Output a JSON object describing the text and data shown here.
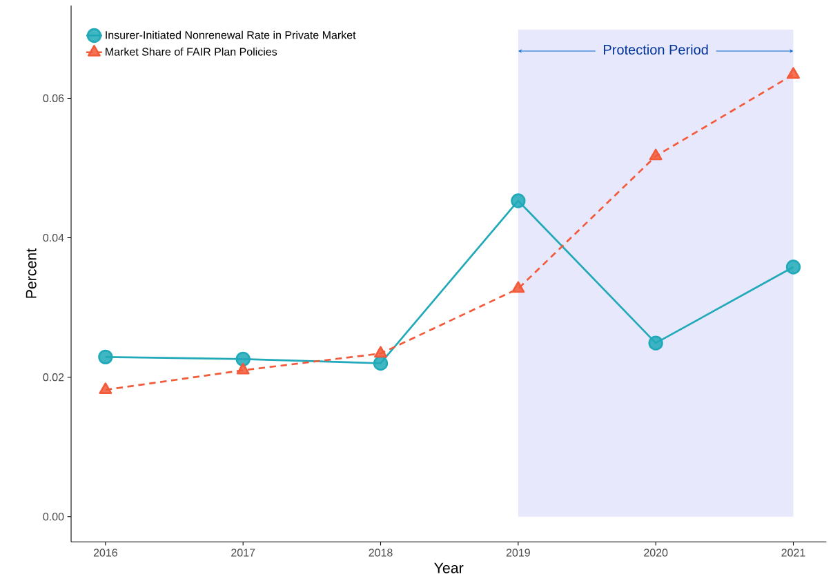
{
  "chart_data": {
    "type": "line",
    "xlabel": "Year",
    "ylabel": "Percent",
    "x": [
      2016,
      2017,
      2018,
      2019,
      2020,
      2021
    ],
    "series": [
      {
        "name": "Insurer-Initiated Nonrenewal Rate in Private Market",
        "color": "#20a9b8",
        "marker": "circle",
        "line_style": "solid",
        "values": [
          0.0229,
          0.0226,
          0.022,
          0.0453,
          0.0249,
          0.0358
        ]
      },
      {
        "name": "Market Share of FAIR Plan Policies",
        "color": "#f25a3a",
        "marker": "triangle",
        "line_style": "dashed",
        "values": [
          0.0182,
          0.021,
          0.0234,
          0.0327,
          0.0517,
          0.0634
        ]
      }
    ],
    "xlim": [
      2015.75,
      2021.24
    ],
    "ylim": [
      -0.0036,
      0.0733
    ],
    "xticks": [
      2016,
      2017,
      2018,
      2019,
      2020,
      2021
    ],
    "yticks": [
      {
        "value": 0,
        "label": "0.00"
      },
      {
        "value": 0.02,
        "label": "0.02"
      },
      {
        "value": 0.04,
        "label": "0.04"
      },
      {
        "value": 0.06,
        "label": "0.06"
      }
    ],
    "bands": [
      {
        "axis": "x",
        "from": 2019,
        "to": 2021,
        "label": "Protection Period",
        "color": "#e8e8fc"
      }
    ],
    "grid": false,
    "legend": "top left"
  }
}
